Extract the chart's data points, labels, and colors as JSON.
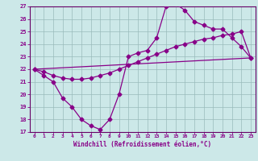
{
  "xlabel": "Windchill (Refroidissement éolien,°C)",
  "bg_color": "#cce8e8",
  "line_color": "#880088",
  "grid_color": "#99bbbb",
  "spine_color": "#660066",
  "xlim": [
    -0.5,
    23.5
  ],
  "ylim": [
    17,
    27
  ],
  "yticks": [
    17,
    18,
    19,
    20,
    21,
    22,
    23,
    24,
    25,
    26,
    27
  ],
  "xticks": [
    0,
    1,
    2,
    3,
    4,
    5,
    6,
    7,
    8,
    9,
    10,
    11,
    12,
    13,
    14,
    15,
    16,
    17,
    18,
    19,
    20,
    21,
    22,
    23
  ],
  "line1_x": [
    0,
    1,
    2,
    3,
    4,
    5,
    6,
    7,
    8,
    9,
    10,
    11,
    12,
    13,
    14,
    15,
    16,
    17,
    18,
    19,
    20,
    21,
    22,
    23
  ],
  "line1_y": [
    22.0,
    21.5,
    21.0,
    19.7,
    19.0,
    18.0,
    17.5,
    17.2,
    18.0,
    20.0,
    23.0,
    23.3,
    23.5,
    24.5,
    27.0,
    27.2,
    26.7,
    25.8,
    25.5,
    25.2,
    25.2,
    24.5,
    23.8,
    22.9
  ],
  "line2_x": [
    0,
    1,
    2,
    3,
    4,
    5,
    6,
    7,
    8,
    9,
    10,
    11,
    12,
    13,
    14,
    15,
    16,
    17,
    18,
    19,
    20,
    21,
    22,
    23
  ],
  "line2_y": [
    22.0,
    21.8,
    21.5,
    21.3,
    21.2,
    21.2,
    21.3,
    21.5,
    21.7,
    22.0,
    22.3,
    22.6,
    22.9,
    23.2,
    23.5,
    23.8,
    24.0,
    24.2,
    24.4,
    24.5,
    24.7,
    24.8,
    25.0,
    22.9
  ],
  "line3_x": [
    0,
    23
  ],
  "line3_y": [
    22.0,
    22.9
  ],
  "marker": "D",
  "markersize": 2.5,
  "linewidth": 0.9
}
